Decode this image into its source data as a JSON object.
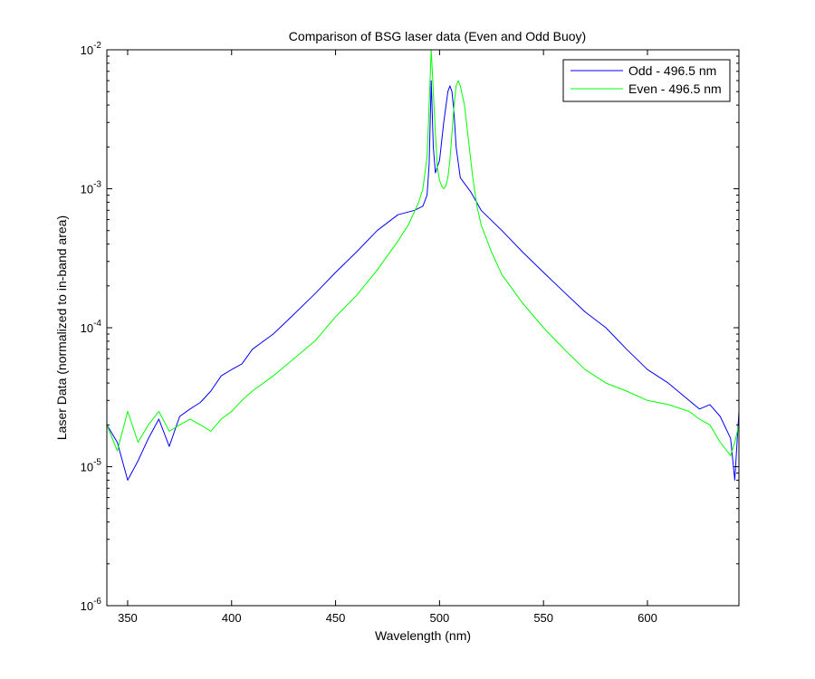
{
  "chart_data": {
    "type": "line",
    "title": "Comparison of BSG laser data (Even and Odd Buoy)",
    "xlabel": "Wavelength (nm)",
    "ylabel": "Laser Data (normalized to in-band area)",
    "xlim": [
      340,
      644
    ],
    "ylim": [
      1e-06,
      0.01
    ],
    "yscale": "log",
    "grid": false,
    "legend_position": "top-right",
    "x_ticks": [
      350,
      400,
      450,
      500,
      550,
      600
    ],
    "x_tick_labels": [
      "350",
      "400",
      "450",
      "500",
      "550",
      "600"
    ],
    "y_ticks": [
      1e-06,
      1e-05,
      0.0001,
      0.001,
      0.01
    ],
    "y_tick_labels": [
      {
        "base": "10",
        "exp": "-6"
      },
      {
        "base": "10",
        "exp": "-5"
      },
      {
        "base": "10",
        "exp": "-4"
      },
      {
        "base": "10",
        "exp": "-3"
      },
      {
        "base": "10",
        "exp": "-2"
      }
    ],
    "series": [
      {
        "name": "Odd - 496.5 nm",
        "color": "#0000ff",
        "x": [
          340,
          345,
          350,
          355,
          360,
          365,
          370,
          375,
          380,
          385,
          390,
          395,
          400,
          405,
          410,
          420,
          430,
          440,
          450,
          460,
          470,
          480,
          488,
          492,
          494,
          495,
          496,
          497,
          498,
          500,
          502,
          504,
          505,
          506,
          507,
          508,
          510,
          515,
          520,
          530,
          540,
          550,
          560,
          570,
          580,
          590,
          600,
          610,
          620,
          625,
          630,
          635,
          640,
          642,
          644
        ],
        "y": [
          2e-05,
          1.5e-05,
          8e-06,
          1.1e-05,
          1.6e-05,
          2.2e-05,
          1.4e-05,
          2.3e-05,
          2.6e-05,
          2.9e-05,
          3.5e-05,
          4.5e-05,
          5e-05,
          5.5e-05,
          7e-05,
          9e-05,
          0.000125,
          0.000175,
          0.00025,
          0.00035,
          0.0005,
          0.00065,
          0.0007,
          0.00075,
          0.0009,
          0.0015,
          0.006,
          0.002,
          0.0013,
          0.0016,
          0.003,
          0.005,
          0.0055,
          0.005,
          0.0035,
          0.002,
          0.0012,
          0.00095,
          0.0007,
          0.0005,
          0.00035,
          0.00025,
          0.00018,
          0.00013,
          0.0001,
          7e-05,
          5e-05,
          4e-05,
          3e-05,
          2.6e-05,
          2.8e-05,
          2.3e-05,
          1.6e-05,
          8e-06,
          2.5e-05
        ]
      },
      {
        "name": "Even - 496.5 nm",
        "color": "#00ff00",
        "x": [
          340,
          345,
          350,
          355,
          360,
          365,
          370,
          375,
          380,
          385,
          390,
          395,
          400,
          405,
          410,
          420,
          430,
          440,
          450,
          460,
          470,
          480,
          485,
          490,
          492,
          494,
          495,
          496,
          497,
          498,
          499,
          500,
          501,
          502,
          503,
          504,
          505,
          506,
          507,
          508,
          509,
          510,
          512,
          514,
          516,
          518,
          520,
          525,
          530,
          540,
          550,
          560,
          570,
          580,
          590,
          600,
          610,
          620,
          625,
          630,
          635,
          640,
          642,
          644
        ],
        "y": [
          2e-05,
          1.3e-05,
          2.5e-05,
          1.5e-05,
          2e-05,
          2.5e-05,
          1.8e-05,
          2e-05,
          2.2e-05,
          2e-05,
          1.8e-05,
          2.2e-05,
          2.5e-05,
          3e-05,
          3.5e-05,
          4.5e-05,
          6e-05,
          8e-05,
          0.00012,
          0.00017,
          0.00026,
          0.00042,
          0.00055,
          0.0008,
          0.001,
          0.0017,
          0.004,
          0.01,
          0.005,
          0.0025,
          0.0014,
          0.00115,
          0.00105,
          0.001,
          0.00105,
          0.0012,
          0.0016,
          0.0025,
          0.004,
          0.0055,
          0.006,
          0.0055,
          0.004,
          0.0022,
          0.0012,
          0.00075,
          0.00055,
          0.00035,
          0.00024,
          0.00015,
          0.0001,
          7e-05,
          5e-05,
          4e-05,
          3.5e-05,
          3e-05,
          2.8e-05,
          2.5e-05,
          2.2e-05,
          2e-05,
          1.5e-05,
          1.2e-05,
          1.5e-05,
          2e-05
        ]
      }
    ]
  }
}
